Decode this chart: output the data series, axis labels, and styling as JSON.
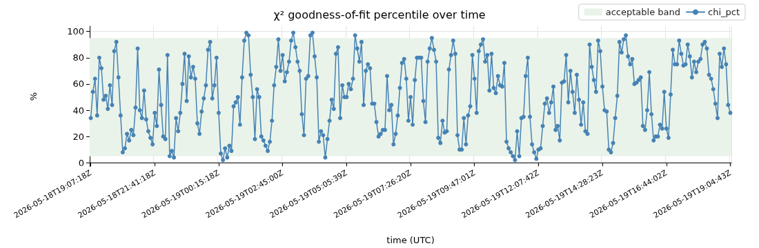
{
  "chart_data": {
    "type": "line",
    "title": "χ² goodness-of-fit percentile over time",
    "xlabel": "time (UTC)",
    "ylabel": "%",
    "categories": [
      "2026-05-18T19:07:18Z",
      null,
      null,
      null,
      null,
      null,
      null,
      null,
      null,
      null,
      null,
      null,
      null,
      null,
      null,
      null,
      null,
      null,
      null,
      null,
      null,
      null,
      null,
      null,
      null,
      null,
      null,
      null,
      null,
      null,
      "2026-05-18T21:41:18Z",
      null,
      null,
      null,
      null,
      null,
      null,
      null,
      null,
      null,
      null,
      null,
      null,
      null,
      null,
      null,
      null,
      null,
      null,
      null,
      null,
      null,
      null,
      null,
      null,
      null,
      null,
      null,
      null,
      null,
      "2026-05-19T00:15:18Z",
      null,
      null,
      null,
      null,
      null,
      null,
      null,
      null,
      null,
      null,
      null,
      null,
      null,
      null,
      null,
      null,
      null,
      null,
      null,
      null,
      null,
      null,
      null,
      null,
      null,
      null,
      null,
      null,
      null,
      "2026-05-19T02:45:00Z",
      null,
      null,
      null,
      null,
      null,
      null,
      null,
      null,
      null,
      null,
      null,
      null,
      null,
      null,
      null,
      null,
      null,
      null,
      null,
      null,
      null,
      null,
      null,
      null,
      null,
      null,
      null,
      null,
      null,
      "2026-05-19T05:05:39Z",
      null,
      null,
      null,
      null,
      null,
      null,
      null,
      null,
      null,
      null,
      null,
      null,
      null,
      null,
      null,
      null,
      null,
      null,
      null,
      null,
      null,
      null,
      null,
      null,
      null,
      null,
      null,
      null,
      null,
      "2026-05-19T07:26:20Z",
      null,
      null,
      null,
      null,
      null,
      null,
      null,
      null,
      null,
      null,
      null,
      null,
      null,
      null,
      null,
      null,
      null,
      null,
      null,
      null,
      null,
      null,
      null,
      null,
      null,
      null,
      null,
      null,
      null,
      "2026-05-19T09:47:01Z",
      null,
      null,
      null,
      null,
      null,
      null,
      null,
      null,
      null,
      null,
      null,
      null,
      null,
      null,
      null,
      null,
      null,
      null,
      null,
      null,
      null,
      null,
      null,
      null,
      null,
      null,
      null,
      null,
      null,
      "2026-05-19T12:07:42Z",
      null,
      null,
      null,
      null,
      null,
      null,
      null,
      null,
      null,
      null,
      null,
      null,
      null,
      null,
      null,
      null,
      null,
      null,
      null,
      null,
      null,
      null,
      null,
      null,
      null,
      null,
      null,
      null,
      null,
      "2026-05-19T14:28:23Z",
      null,
      null,
      null,
      null,
      null,
      null,
      null,
      null,
      null,
      null,
      null,
      null,
      null,
      null,
      null,
      null,
      null,
      null,
      null,
      null,
      null,
      null,
      null,
      null,
      null,
      null,
      null,
      null,
      null,
      "2026-05-19T16:44:02Z",
      null,
      null,
      null,
      null,
      null,
      null,
      null,
      null,
      null,
      null,
      null,
      null,
      null,
      null,
      null,
      null,
      null,
      null,
      null,
      null,
      null,
      null,
      null,
      null,
      null,
      null,
      null,
      null,
      null,
      "2026-05-19T19:04:43Z"
    ],
    "series": [
      {
        "name": "chi_pct",
        "color": "#4682b4",
        "values": [
          34,
          54,
          64,
          36,
          80,
          72,
          48,
          51,
          41,
          59,
          44,
          85,
          92,
          65,
          36,
          8,
          11,
          22,
          17,
          25,
          21,
          42,
          87,
          40,
          34,
          55,
          33,
          24,
          19,
          14,
          38,
          28,
          71,
          44,
          20,
          18,
          82,
          5,
          9,
          4,
          34,
          24,
          38,
          60,
          83,
          47,
          81,
          65,
          73,
          64,
          30,
          22,
          39,
          49,
          59,
          86,
          92,
          49,
          59,
          80,
          38,
          7,
          2,
          11,
          4,
          13,
          9,
          43,
          46,
          50,
          29,
          65,
          93,
          99,
          97,
          67,
          50,
          18,
          56,
          50,
          20,
          17,
          13,
          9,
          16,
          32,
          59,
          73,
          94,
          70,
          82,
          62,
          69,
          77,
          93,
          99,
          88,
          77,
          70,
          37,
          21,
          64,
          66,
          97,
          99,
          81,
          65,
          16,
          24,
          21,
          4,
          18,
          32,
          48,
          41,
          83,
          88,
          34,
          59,
          50,
          50,
          60,
          56,
          64,
          97,
          87,
          77,
          92,
          44,
          70,
          75,
          72,
          45,
          45,
          31,
          20,
          22,
          25,
          25,
          66,
          40,
          44,
          14,
          22,
          36,
          57,
          76,
          79,
          64,
          32,
          50,
          29,
          63,
          80,
          80,
          80,
          47,
          31,
          77,
          87,
          95,
          86,
          77,
          19,
          15,
          32,
          23,
          24,
          71,
          82,
          93,
          83,
          21,
          10,
          10,
          34,
          14,
          36,
          43,
          82,
          64,
          38,
          85,
          90,
          94,
          77,
          82,
          55,
          83,
          57,
          53,
          66,
          59,
          58,
          76,
          16,
          11,
          8,
          5,
          2,
          24,
          5,
          34,
          35,
          66,
          80,
          35,
          14,
          8,
          3,
          10,
          11,
          28,
          45,
          49,
          38,
          46,
          58,
          25,
          28,
          17,
          61,
          62,
          82,
          46,
          70,
          54,
          38,
          67,
          48,
          29,
          46,
          24,
          22,
          90,
          73,
          63,
          54,
          93,
          85,
          58,
          40,
          39,
          10,
          8,
          15,
          34,
          51,
          92,
          84,
          94,
          97,
          81,
          75,
          79,
          60,
          61,
          63,
          65,
          28,
          25,
          40,
          69,
          37,
          17,
          20,
          20,
          29,
          26,
          54,
          26,
          19,
          52,
          86,
          75,
          75,
          93,
          83,
          74,
          75,
          90,
          81,
          65,
          77,
          69,
          77,
          79,
          90,
          92,
          87,
          67,
          64,
          56,
          45,
          34,
          83,
          73,
          87,
          75,
          44,
          38
        ]
      }
    ],
    "ylim": [
      -3,
      104
    ],
    "yticks": [
      0,
      20,
      40,
      60,
      80,
      100
    ],
    "bands": [
      {
        "axis": "y",
        "from": 5,
        "to": 95,
        "label": "acceptable band",
        "color": "#e9f3e9"
      }
    ],
    "grid": true,
    "legend": "top right",
    "marker": "circle",
    "line_style": "solid"
  }
}
